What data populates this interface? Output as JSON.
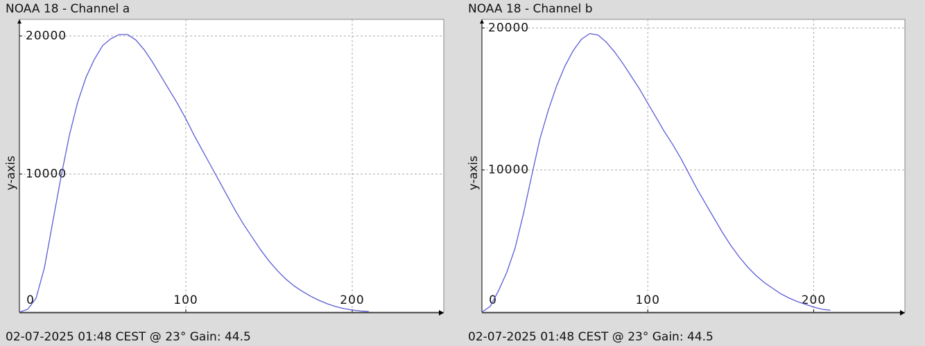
{
  "chart_data": [
    {
      "type": "line",
      "title": "NOAA 18 - Channel a",
      "footer": "02-07-2025 01:48 CEST @ 23° Gain: 44.5",
      "y_label": "y-axis",
      "x": [
        0,
        5,
        10,
        15,
        20,
        25,
        30,
        35,
        40,
        45,
        50,
        55,
        60,
        65,
        70,
        75,
        80,
        85,
        90,
        95,
        100,
        105,
        110,
        115,
        120,
        125,
        130,
        135,
        140,
        145,
        150,
        155,
        160,
        165,
        170,
        175,
        180,
        185,
        190,
        195,
        200,
        205,
        210
      ],
      "values": [
        0,
        200,
        1000,
        3200,
        6500,
        9800,
        12800,
        15200,
        17000,
        18300,
        19300,
        19800,
        20100,
        20100,
        19700,
        19000,
        18100,
        17100,
        16100,
        15100,
        14000,
        12800,
        11700,
        10600,
        9500,
        8400,
        7300,
        6300,
        5400,
        4500,
        3700,
        3000,
        2400,
        1900,
        1500,
        1150,
        850,
        600,
        400,
        250,
        150,
        80,
        40
      ],
      "color": "#5a5ad6",
      "xlim": [
        0,
        255
      ],
      "ylim": [
        0,
        21200
      ],
      "xticks": [
        0,
        100,
        200
      ],
      "yticks": [
        10000,
        20000
      ],
      "grid": true
    },
    {
      "type": "line",
      "title": "NOAA 18 - Channel b",
      "footer": "02-07-2025 01:48 CEST @ 23° Gain: 44.5",
      "y_label": "y-axis",
      "x": [
        0,
        5,
        10,
        15,
        20,
        25,
        30,
        35,
        40,
        45,
        50,
        55,
        60,
        65,
        70,
        75,
        80,
        85,
        90,
        95,
        100,
        105,
        110,
        115,
        120,
        125,
        130,
        135,
        140,
        145,
        150,
        155,
        160,
        165,
        170,
        175,
        180,
        185,
        190,
        195,
        200,
        205,
        210
      ],
      "values": [
        0,
        400,
        1500,
        2800,
        4500,
        6900,
        9600,
        12200,
        14200,
        15900,
        17300,
        18400,
        19200,
        19600,
        19500,
        19000,
        18300,
        17500,
        16600,
        15700,
        14700,
        13700,
        12700,
        11800,
        10800,
        9700,
        8600,
        7600,
        6600,
        5600,
        4700,
        3900,
        3200,
        2600,
        2100,
        1700,
        1300,
        1000,
        750,
        550,
        350,
        200,
        130
      ],
      "color": "#5a5ad6",
      "xlim": [
        0,
        255
      ],
      "ylim": [
        0,
        20600
      ],
      "xticks": [
        0,
        100,
        200
      ],
      "yticks": [
        10000,
        20000
      ],
      "grid": true
    }
  ]
}
